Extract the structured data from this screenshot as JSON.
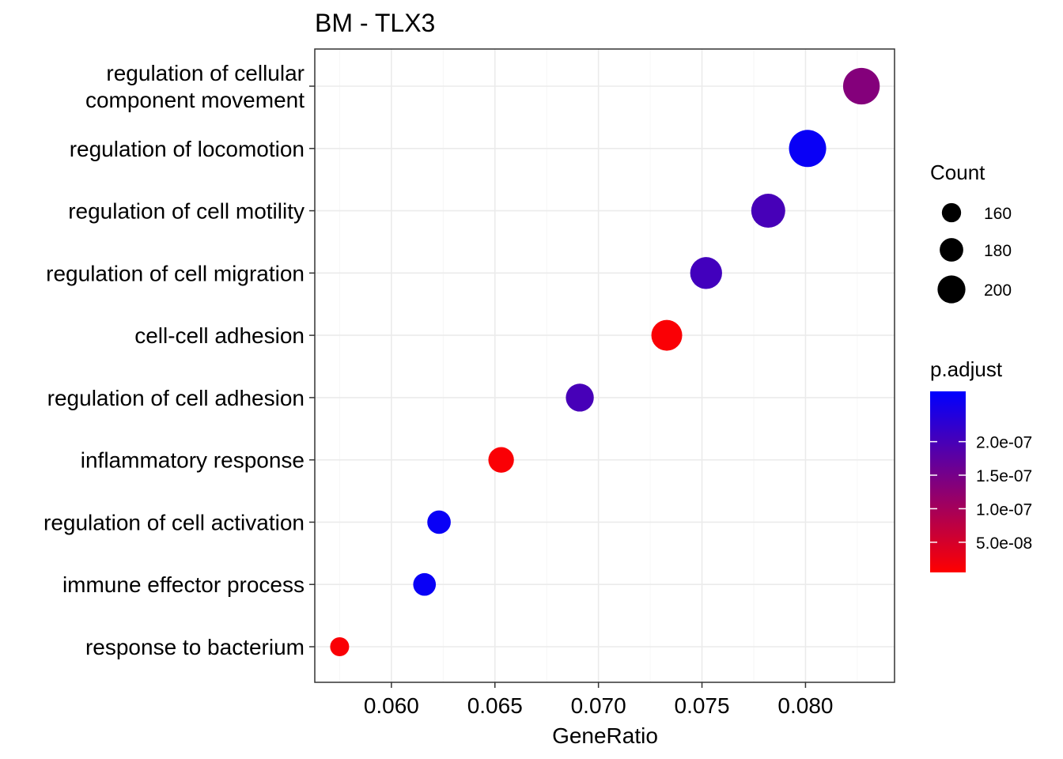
{
  "chart_data": {
    "type": "scatter",
    "title": "BM - TLX3",
    "xlabel": "GeneRatio",
    "ylabel": "",
    "xlim": [
      0.0563,
      0.0843
    ],
    "x_ticks": [
      "0.060",
      "0.065",
      "0.070",
      "0.075",
      "0.080"
    ],
    "x_tick_values": [
      0.06,
      0.065,
      0.07,
      0.075,
      0.08
    ],
    "grid": true,
    "categories": [
      [
        "regulation of cellular",
        "component movement"
      ],
      [
        "regulation of locomotion"
      ],
      [
        "regulation of cell motility"
      ],
      [
        "regulation of cell migration"
      ],
      [
        "cell-cell adhesion"
      ],
      [
        "regulation of cell adhesion"
      ],
      [
        "inflammatory response"
      ],
      [
        "regulation of cell activation"
      ],
      [
        "immune effector process"
      ],
      [
        "response to bacterium"
      ]
    ],
    "points": [
      {
        "x": 0.0827,
        "count": 210,
        "p_adjust": 1.35e-07
      },
      {
        "x": 0.0801,
        "count": 212,
        "p_adjust": 2.65e-07
      },
      {
        "x": 0.0782,
        "count": 200,
        "p_adjust": 2e-07
      },
      {
        "x": 0.0752,
        "count": 192,
        "p_adjust": 2.05e-07
      },
      {
        "x": 0.0733,
        "count": 188,
        "p_adjust": 1e-08
      },
      {
        "x": 0.0691,
        "count": 177,
        "p_adjust": 2e-07
      },
      {
        "x": 0.0653,
        "count": 168,
        "p_adjust": 1e-08
      },
      {
        "x": 0.0623,
        "count": 160,
        "p_adjust": 2.65e-07
      },
      {
        "x": 0.0616,
        "count": 157,
        "p_adjust": 2.65e-07
      },
      {
        "x": 0.0575,
        "count": 143,
        "p_adjust": 1e-08
      }
    ],
    "legend_size": {
      "title": "Count",
      "entries": [
        {
          "label": "160",
          "value": 160
        },
        {
          "label": "180",
          "value": 180
        },
        {
          "label": "200",
          "value": 200
        }
      ]
    },
    "legend_color": {
      "title": "p.adjust",
      "low_color": "#ff0000",
      "high_color": "#0000ff",
      "range": [
        5e-09,
        2.75e-07
      ],
      "entries": [
        {
          "label": "5.0e-08",
          "value": 5e-08
        },
        {
          "label": "1.0e-07",
          "value": 1e-07
        },
        {
          "label": "1.5e-07",
          "value": 1.5e-07
        },
        {
          "label": "2.0e-07",
          "value": 2e-07
        }
      ]
    },
    "legend_position": "right"
  }
}
